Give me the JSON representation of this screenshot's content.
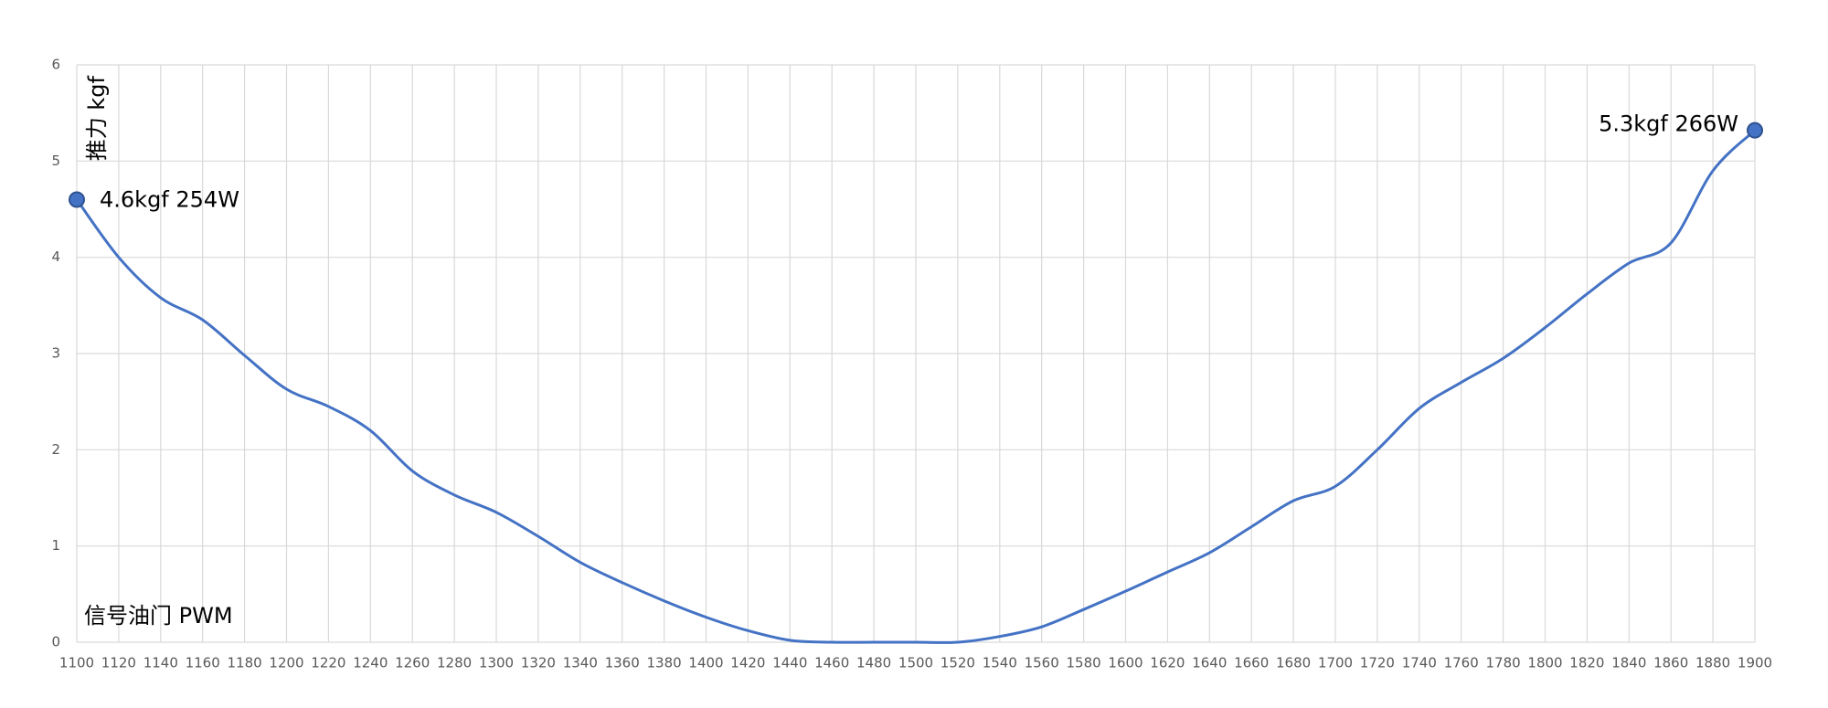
{
  "chart_data": {
    "type": "line",
    "y_label": "推力 kgf",
    "x_label": "信号油门 PWM",
    "x": [
      1100,
      1120,
      1140,
      1160,
      1180,
      1200,
      1220,
      1240,
      1260,
      1280,
      1300,
      1320,
      1340,
      1360,
      1380,
      1400,
      1420,
      1440,
      1460,
      1480,
      1500,
      1520,
      1540,
      1560,
      1580,
      1600,
      1620,
      1640,
      1660,
      1680,
      1700,
      1720,
      1740,
      1760,
      1780,
      1800,
      1820,
      1840,
      1860,
      1880,
      1900
    ],
    "series": [
      {
        "color": "#4472c4",
        "values": [
          4.6,
          4.0,
          3.58,
          3.35,
          2.98,
          2.63,
          2.45,
          2.2,
          1.78,
          1.53,
          1.35,
          1.1,
          0.83,
          0.62,
          0.43,
          0.26,
          0.12,
          0.02,
          0.0,
          0.0,
          0.0,
          0.0,
          0.06,
          0.16,
          0.34,
          0.53,
          0.73,
          0.93,
          1.2,
          1.47,
          1.62,
          2.0,
          2.43,
          2.7,
          2.95,
          3.27,
          3.62,
          3.94,
          4.15,
          4.9,
          5.32
        ]
      }
    ],
    "xlim": [
      1100,
      1900
    ],
    "xticks": [
      1100,
      1120,
      1140,
      1160,
      1180,
      1200,
      1220,
      1240,
      1260,
      1280,
      1300,
      1320,
      1340,
      1360,
      1380,
      1400,
      1420,
      1440,
      1460,
      1480,
      1500,
      1520,
      1540,
      1560,
      1580,
      1600,
      1620,
      1640,
      1660,
      1680,
      1700,
      1720,
      1740,
      1760,
      1780,
      1800,
      1820,
      1840,
      1860,
      1880,
      1900
    ],
    "ylim": [
      0,
      6
    ],
    "yticks": [
      0,
      1,
      2,
      3,
      4,
      5,
      6
    ],
    "grid": true,
    "annotations": [
      {
        "text": "4.6kgf 254W",
        "x": 1100,
        "y": 4.6
      },
      {
        "text": "5.3kgf 266W",
        "x": 1900,
        "y": 5.32
      }
    ]
  }
}
